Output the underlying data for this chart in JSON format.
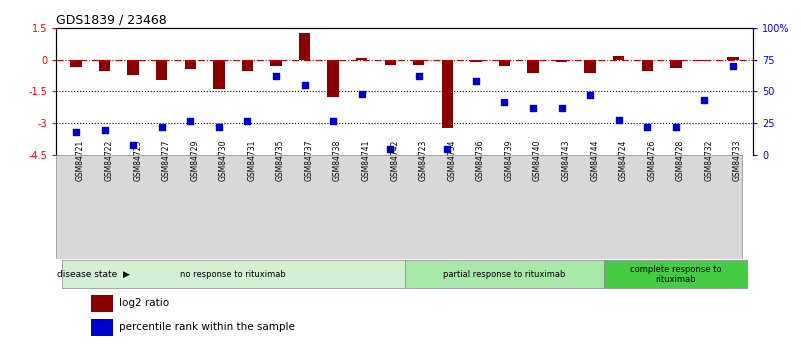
{
  "title": "GDS1839 / 23468",
  "samples": [
    "GSM84721",
    "GSM84722",
    "GSM84725",
    "GSM84727",
    "GSM84729",
    "GSM84730",
    "GSM84731",
    "GSM84735",
    "GSM84737",
    "GSM84738",
    "GSM84741",
    "GSM84742",
    "GSM84723",
    "GSM84734",
    "GSM84736",
    "GSM84739",
    "GSM84740",
    "GSM84743",
    "GSM84744",
    "GSM84724",
    "GSM84726",
    "GSM84728",
    "GSM84732",
    "GSM84733"
  ],
  "log2_ratio": [
    -0.35,
    -0.55,
    -0.75,
    -0.95,
    -0.45,
    -1.4,
    -0.55,
    -0.3,
    1.25,
    -1.75,
    0.08,
    -0.28,
    -0.25,
    -3.2,
    -0.1,
    -0.3,
    -0.65,
    -0.1,
    -0.65,
    0.15,
    -0.55,
    -0.38,
    -0.05,
    0.12
  ],
  "percentile": [
    18,
    20,
    8,
    22,
    27,
    22,
    27,
    62,
    55,
    27,
    48,
    5,
    62,
    5,
    58,
    42,
    37,
    37,
    47,
    28,
    22,
    22,
    43,
    70
  ],
  "groups": [
    {
      "label": "no response to rituximab",
      "start": 0,
      "end": 12,
      "color": "#d4f0d4"
    },
    {
      "label": "partial response to rituximab",
      "start": 12,
      "end": 19,
      "color": "#a8e8a8"
    },
    {
      "label": "complete response to\nrituximab",
      "start": 19,
      "end": 24,
      "color": "#44cc44"
    }
  ],
  "bar_color": "#8B0000",
  "dot_color": "#0000CC",
  "ylim_left": [
    -4.5,
    1.5
  ],
  "ylim_right": [
    0,
    100
  ],
  "yticks_left": [
    1.5,
    0,
    -1.5,
    -3,
    -4.5
  ],
  "yticks_right": [
    100,
    75,
    50,
    25,
    0
  ],
  "hlines": [
    0,
    -1.5,
    -3
  ],
  "hline_styles": [
    "dashdot",
    "dotted",
    "dotted"
  ],
  "hline_colors": [
    "#cc0000",
    "black",
    "black"
  ]
}
